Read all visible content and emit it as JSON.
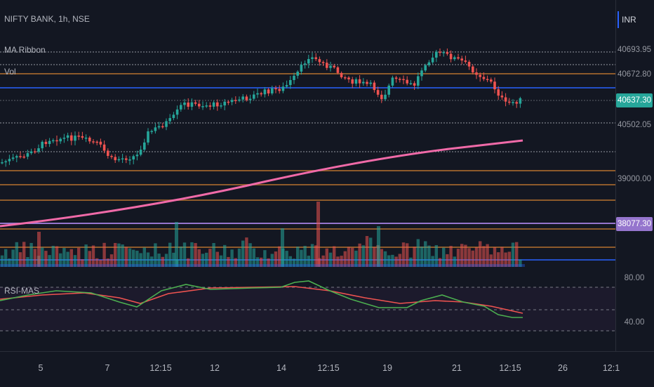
{
  "header": {
    "symbol_line": "NIFTY BANK, 1h, NSE",
    "indicator_1": "MA Ribbon",
    "indicator_2": "Vol",
    "rsi_title": "RSI-MAS"
  },
  "price_scale": {
    "currency": "INR",
    "labels": [
      "40693.95",
      "40672.80",
      "40637.30",
      "40502.05",
      "39000.00",
      "38077.30"
    ],
    "rsi_labels": [
      "80.00",
      "40.00"
    ]
  },
  "time_axis": {
    "labels": [
      "5",
      "7",
      "12:15",
      "12",
      "14",
      "12:15",
      "19",
      "21",
      "12:15",
      "26",
      "12:1"
    ]
  },
  "colors": {
    "background": "#131722",
    "up": "#26a69a",
    "down": "#ef5350",
    "ma_long": "#f06aa8",
    "accent": "#2962ff",
    "purple": "#9575cd",
    "rsi_fast": "#4caf50",
    "rsi_slow": "#ef5350"
  }
}
